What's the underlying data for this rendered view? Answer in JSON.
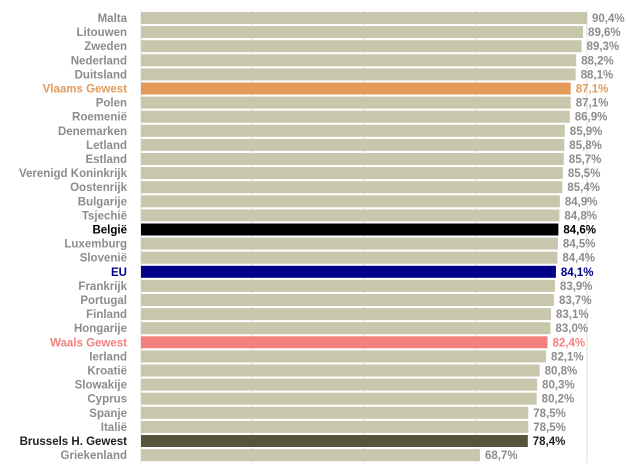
{
  "chart_data": {
    "type": "bar",
    "orientation": "horizontal",
    "title": "",
    "xlabel": "",
    "ylabel": "",
    "grid": true,
    "legend": "none",
    "xlim": [
      0,
      90.4
    ],
    "categories": [
      "Malta",
      "Litouwen",
      "Zweden",
      "Nederland",
      "Duitsland",
      "Vlaams Gewest",
      "Polen",
      "Roemenië",
      "Denemarken",
      "Letland",
      "Estland",
      "Verenigd Koninkrijk",
      "Oostenrijk",
      "Bulgarije",
      "Tsjechië",
      "België",
      "Luxemburg",
      "Slovenië",
      "EU",
      "Frankrijk",
      "Portugal",
      "Finland",
      "Hongarije",
      "Waals Gewest",
      "Ierland",
      "Kroatië",
      "Slowakije",
      "Cyprus",
      "Spanje",
      "Italië",
      "Brussels H. Gewest",
      "Griekenland"
    ],
    "values": [
      90.4,
      89.6,
      89.3,
      88.2,
      88.1,
      87.1,
      87.1,
      86.9,
      85.9,
      85.8,
      85.7,
      85.5,
      85.4,
      84.9,
      84.8,
      84.6,
      84.5,
      84.4,
      84.1,
      83.9,
      83.7,
      83.1,
      83.0,
      82.4,
      82.1,
      80.8,
      80.3,
      80.2,
      78.5,
      78.5,
      78.4,
      68.7
    ],
    "value_labels": [
      "90,4%",
      "89,6%",
      "89,3%",
      "88,2%",
      "88,1%",
      "87,1%",
      "87,1%",
      "86,9%",
      "85,9%",
      "85,8%",
      "85,7%",
      "85,5%",
      "85,4%",
      "84,9%",
      "84,8%",
      "84,6%",
      "84,5%",
      "84,4%",
      "84,1%",
      "83,9%",
      "83,7%",
      "83,1%",
      "83,0%",
      "82,4%",
      "82,1%",
      "80,8%",
      "80,3%",
      "80,2%",
      "78,5%",
      "78,5%",
      "78,4%",
      "68,7%"
    ],
    "colors": {
      "default_bar": "#c8c7ae",
      "default_label": "#8c8c8c",
      "gridline": "#dcdcdc"
    },
    "highlights": {
      "Vlaams Gewest": {
        "bar": "#e39a5b",
        "label": "#e39a5b"
      },
      "België": {
        "bar": "#000000",
        "label": "#000000"
      },
      "EU": {
        "bar": "#00008b",
        "label": "#00008b"
      },
      "Waals Gewest": {
        "bar": "#f4807d",
        "label": "#f4807d"
      },
      "Brussels H. Gewest": {
        "bar": "#55553b",
        "label": "#222222"
      }
    }
  }
}
